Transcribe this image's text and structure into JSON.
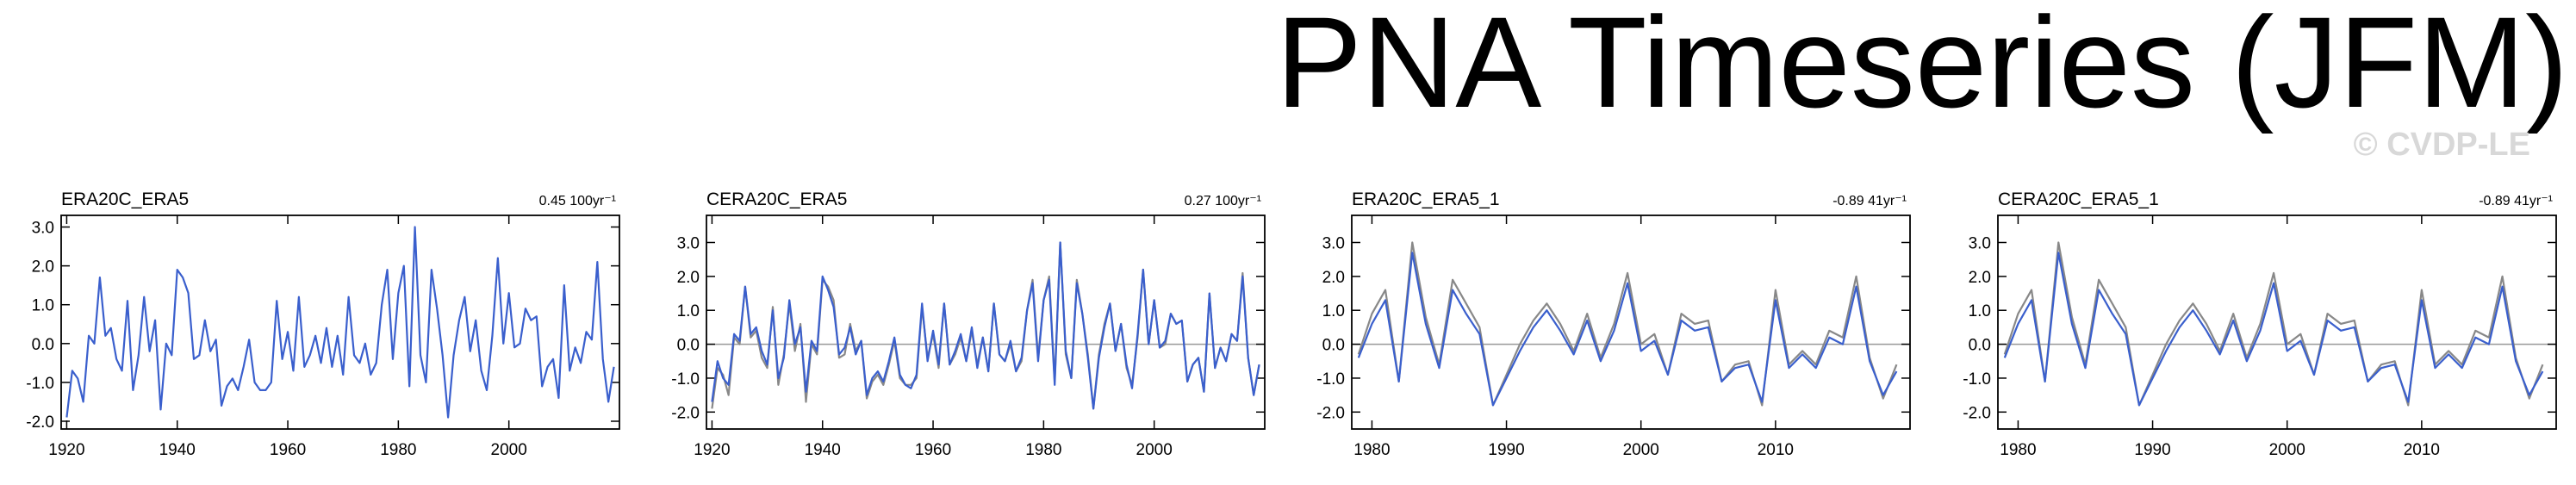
{
  "title": "PNA Timeseries (JFM)",
  "credit": "© CVDP-LE",
  "chart_data": [
    {
      "type": "line",
      "title": "ERA20C_ERA5",
      "trend": "0.45 100yr⁻¹",
      "x": [
        1920,
        1921,
        1922,
        1923,
        1924,
        1925,
        1926,
        1927,
        1928,
        1929,
        1930,
        1931,
        1932,
        1933,
        1934,
        1935,
        1936,
        1937,
        1938,
        1939,
        1940,
        1941,
        1942,
        1943,
        1944,
        1945,
        1946,
        1947,
        1948,
        1949,
        1950,
        1951,
        1952,
        1953,
        1954,
        1955,
        1956,
        1957,
        1958,
        1959,
        1960,
        1961,
        1962,
        1963,
        1964,
        1965,
        1966,
        1967,
        1968,
        1969,
        1970,
        1971,
        1972,
        1973,
        1974,
        1975,
        1976,
        1977,
        1978,
        1979,
        1980,
        1981,
        1982,
        1983,
        1984,
        1985,
        1986,
        1987,
        1988,
        1989,
        1990,
        1991,
        1992,
        1993,
        1994,
        1995,
        1996,
        1997,
        1998,
        1999,
        2000,
        2001,
        2002,
        2003,
        2004,
        2005,
        2006,
        2007,
        2008,
        2009,
        2010,
        2011,
        2012,
        2013,
        2014,
        2015,
        2016,
        2017,
        2018,
        2019
      ],
      "series": [
        {
          "color": "#3a5fcd",
          "values": [
            -1.9,
            -0.7,
            -0.9,
            -1.5,
            0.2,
            0.0,
            1.7,
            0.2,
            0.4,
            -0.4,
            -0.7,
            1.1,
            -1.2,
            -0.3,
            1.2,
            -0.2,
            0.6,
            -1.7,
            0.0,
            -0.3,
            1.9,
            1.7,
            1.3,
            -0.4,
            -0.3,
            0.6,
            -0.2,
            0.1,
            -1.6,
            -1.1,
            -0.9,
            -1.2,
            -0.6,
            0.1,
            -1.0,
            -1.2,
            -1.2,
            -1.0,
            1.1,
            -0.4,
            0.3,
            -0.7,
            1.2,
            -0.6,
            -0.3,
            0.2,
            -0.5,
            0.4,
            -0.6,
            0.2,
            -0.8,
            1.2,
            -0.3,
            -0.5,
            0.0,
            -0.8,
            -0.5,
            1.0,
            1.9,
            -0.4,
            1.3,
            2.0,
            -1.1,
            3.0,
            -0.3,
            -1.0,
            1.9,
            0.9,
            -0.3,
            -1.9,
            -0.3,
            0.6,
            1.2,
            -0.2,
            0.6,
            -0.7,
            -1.2,
            0.2,
            2.2,
            0.0,
            1.3,
            -0.1,
            0.0,
            0.9,
            0.6,
            0.7,
            -1.1,
            -0.6,
            -0.4,
            -1.4,
            1.5,
            -0.7,
            -0.1,
            -0.5,
            0.3,
            0.1,
            2.1,
            -0.4,
            -1.5,
            -0.6
          ]
        }
      ],
      "xlim": [
        1919,
        2020
      ],
      "ylim": [
        -2.2,
        3.3
      ],
      "xticks": [
        1920,
        1940,
        1960,
        1980,
        2000
      ],
      "yticks": [
        {
          "value": -2,
          "label": "-2.0"
        },
        {
          "value": -1,
          "label": "-1.0"
        },
        {
          "value": 0,
          "label": "0.0"
        },
        {
          "value": 1,
          "label": "1.0"
        },
        {
          "value": 2,
          "label": "2.0"
        },
        {
          "value": 3,
          "label": "3.0"
        }
      ],
      "zero_line": false
    },
    {
      "type": "line",
      "title": "CERA20C_ERA5",
      "trend": "0.27 100yr⁻¹",
      "x": [
        1920,
        1921,
        1922,
        1923,
        1924,
        1925,
        1926,
        1927,
        1928,
        1929,
        1930,
        1931,
        1932,
        1933,
        1934,
        1935,
        1936,
        1937,
        1938,
        1939,
        1940,
        1941,
        1942,
        1943,
        1944,
        1945,
        1946,
        1947,
        1948,
        1949,
        1950,
        1951,
        1952,
        1953,
        1954,
        1955,
        1956,
        1957,
        1958,
        1959,
        1960,
        1961,
        1962,
        1963,
        1964,
        1965,
        1966,
        1967,
        1968,
        1969,
        1970,
        1971,
        1972,
        1973,
        1974,
        1975,
        1976,
        1977,
        1978,
        1979,
        1980,
        1981,
        1982,
        1983,
        1984,
        1985,
        1986,
        1987,
        1988,
        1989,
        1990,
        1991,
        1992,
        1993,
        1994,
        1995,
        1996,
        1997,
        1998,
        1999,
        2000,
        2001,
        2002,
        2003,
        2004,
        2005,
        2006,
        2007,
        2008,
        2009,
        2010,
        2011,
        2012,
        2013,
        2014,
        2015,
        2016,
        2017,
        2018,
        2019
      ],
      "series": [
        {
          "color": "#888888",
          "values": [
            -1.9,
            -0.7,
            -0.9,
            -1.5,
            0.2,
            0.0,
            1.7,
            0.2,
            0.4,
            -0.4,
            -0.7,
            1.1,
            -1.2,
            -0.3,
            1.2,
            -0.2,
            0.6,
            -1.7,
            0.0,
            -0.3,
            1.9,
            1.7,
            1.3,
            -0.4,
            -0.3,
            0.6,
            -0.2,
            0.1,
            -1.6,
            -1.1,
            -0.9,
            -1.2,
            -0.6,
            0.1,
            -1.0,
            -1.2,
            -1.2,
            -1.0,
            1.1,
            -0.4,
            0.3,
            -0.7,
            1.2,
            -0.6,
            -0.3,
            0.2,
            -0.5,
            0.4,
            -0.6,
            0.2,
            -0.8,
            1.2,
            -0.3,
            -0.5,
            0.0,
            -0.8,
            -0.5,
            1.0,
            1.9,
            -0.4,
            1.3,
            2.0,
            -1.1,
            3.0,
            -0.3,
            -1.0,
            1.9,
            0.9,
            -0.3,
            -1.9,
            -0.3,
            0.6,
            1.2,
            -0.2,
            0.6,
            -0.7,
            -1.2,
            0.2,
            2.2,
            0.0,
            1.3,
            -0.1,
            0.0,
            0.9,
            0.6,
            0.7,
            -1.1,
            -0.6,
            -0.4,
            -1.4,
            1.5,
            -0.7,
            -0.1,
            -0.5,
            0.3,
            0.1,
            2.1,
            -0.4,
            -1.5,
            -0.6
          ]
        },
        {
          "color": "#3a5fcd",
          "values": [
            -1.7,
            -0.5,
            -1.0,
            -1.2,
            0.3,
            0.1,
            1.7,
            0.3,
            0.5,
            -0.2,
            -0.6,
            1.0,
            -1.0,
            -0.4,
            1.3,
            0.0,
            0.5,
            -1.4,
            0.1,
            -0.2,
            2.0,
            1.6,
            1.1,
            -0.3,
            -0.1,
            0.5,
            -0.3,
            0.1,
            -1.5,
            -1.0,
            -0.8,
            -1.1,
            -0.5,
            0.2,
            -0.9,
            -1.2,
            -1.3,
            -0.9,
            1.2,
            -0.5,
            0.4,
            -0.6,
            1.2,
            -0.6,
            -0.2,
            0.3,
            -0.5,
            0.5,
            -0.7,
            0.2,
            -0.8,
            1.2,
            -0.3,
            -0.5,
            0.1,
            -0.8,
            -0.4,
            1.0,
            1.8,
            -0.5,
            1.3,
            1.9,
            -1.2,
            3.0,
            -0.2,
            -1.0,
            1.8,
            0.9,
            -0.4,
            -1.9,
            -0.4,
            0.5,
            1.2,
            -0.2,
            0.6,
            -0.6,
            -1.3,
            0.3,
            2.2,
            0.0,
            1.3,
            -0.1,
            0.1,
            0.9,
            0.6,
            0.7,
            -1.1,
            -0.6,
            -0.4,
            -1.4,
            1.5,
            -0.7,
            -0.1,
            -0.5,
            0.3,
            0.1,
            2.0,
            -0.4,
            -1.5,
            -0.6
          ]
        }
      ],
      "xlim": [
        1919,
        2020
      ],
      "ylim": [
        -2.5,
        3.8
      ],
      "xticks": [
        1920,
        1940,
        1960,
        1980,
        2000
      ],
      "yticks": [
        {
          "value": -2,
          "label": "-2.0"
        },
        {
          "value": -1,
          "label": "-1.0"
        },
        {
          "value": 0,
          "label": "0.0"
        },
        {
          "value": 1,
          "label": "1.0"
        },
        {
          "value": 2,
          "label": "2.0"
        },
        {
          "value": 3,
          "label": "3.0"
        }
      ],
      "zero_line": true
    },
    {
      "type": "line",
      "title": "ERA20C_ERA5_1",
      "trend": "-0.89 41yr⁻¹",
      "x": [
        1979,
        1980,
        1981,
        1982,
        1983,
        1984,
        1985,
        1986,
        1987,
        1988,
        1989,
        1990,
        1991,
        1992,
        1993,
        1994,
        1995,
        1996,
        1997,
        1998,
        1999,
        2000,
        2001,
        2002,
        2003,
        2004,
        2005,
        2006,
        2007,
        2008,
        2009,
        2010,
        2011,
        2012,
        2013,
        2014,
        2015,
        2016,
        2017,
        2018,
        2019
      ],
      "series": [
        {
          "color": "#888888",
          "values": [
            -0.3,
            0.9,
            1.6,
            -1.1,
            3.0,
            0.8,
            -0.6,
            1.9,
            1.2,
            0.5,
            -1.8,
            -0.9,
            0.0,
            0.7,
            1.2,
            0.6,
            -0.2,
            0.9,
            -0.4,
            0.6,
            2.1,
            0.0,
            0.3,
            -0.9,
            0.9,
            0.6,
            0.7,
            -1.1,
            -0.6,
            -0.5,
            -1.8,
            1.6,
            -0.6,
            -0.2,
            -0.6,
            0.4,
            0.2,
            2.0,
            -0.4,
            -1.6,
            -0.6
          ]
        },
        {
          "color": "#3a5fcd",
          "values": [
            -0.4,
            0.6,
            1.3,
            -1.1,
            2.7,
            0.6,
            -0.7,
            1.6,
            0.9,
            0.3,
            -1.8,
            -1.0,
            -0.2,
            0.5,
            1.0,
            0.4,
            -0.3,
            0.7,
            -0.5,
            0.4,
            1.8,
            -0.2,
            0.1,
            -0.9,
            0.7,
            0.4,
            0.5,
            -1.1,
            -0.7,
            -0.6,
            -1.7,
            1.3,
            -0.7,
            -0.3,
            -0.7,
            0.2,
            0.0,
            1.7,
            -0.5,
            -1.5,
            -0.8
          ]
        }
      ],
      "xlim": [
        1978.5,
        2020
      ],
      "ylim": [
        -2.5,
        3.8
      ],
      "xticks": [
        1980,
        1990,
        2000,
        2010
      ],
      "yticks": [
        {
          "value": -2,
          "label": "-2.0"
        },
        {
          "value": -1,
          "label": "-1.0"
        },
        {
          "value": 0,
          "label": "0.0"
        },
        {
          "value": 1,
          "label": "1.0"
        },
        {
          "value": 2,
          "label": "2.0"
        },
        {
          "value": 3,
          "label": "3.0"
        }
      ],
      "zero_line": true
    },
    {
      "type": "line",
      "title": "CERA20C_ERA5_1",
      "trend": "-0.89 41yr⁻¹",
      "x": [
        1979,
        1980,
        1981,
        1982,
        1983,
        1984,
        1985,
        1986,
        1987,
        1988,
        1989,
        1990,
        1991,
        1992,
        1993,
        1994,
        1995,
        1996,
        1997,
        1998,
        1999,
        2000,
        2001,
        2002,
        2003,
        2004,
        2005,
        2006,
        2007,
        2008,
        2009,
        2010,
        2011,
        2012,
        2013,
        2014,
        2015,
        2016,
        2017,
        2018,
        2019
      ],
      "series": [
        {
          "color": "#888888",
          "values": [
            -0.3,
            0.9,
            1.6,
            -1.1,
            3.0,
            0.8,
            -0.6,
            1.9,
            1.2,
            0.5,
            -1.8,
            -0.9,
            0.0,
            0.7,
            1.2,
            0.6,
            -0.2,
            0.9,
            -0.4,
            0.6,
            2.1,
            0.0,
            0.3,
            -0.9,
            0.9,
            0.6,
            0.7,
            -1.1,
            -0.6,
            -0.5,
            -1.8,
            1.6,
            -0.6,
            -0.2,
            -0.6,
            0.4,
            0.2,
            2.0,
            -0.4,
            -1.6,
            -0.6
          ]
        },
        {
          "color": "#3a5fcd",
          "values": [
            -0.4,
            0.6,
            1.3,
            -1.1,
            2.7,
            0.6,
            -0.7,
            1.6,
            0.9,
            0.3,
            -1.8,
            -1.0,
            -0.2,
            0.5,
            1.0,
            0.4,
            -0.3,
            0.7,
            -0.5,
            0.4,
            1.8,
            -0.2,
            0.1,
            -0.9,
            0.7,
            0.4,
            0.5,
            -1.1,
            -0.7,
            -0.6,
            -1.7,
            1.3,
            -0.7,
            -0.3,
            -0.7,
            0.2,
            0.0,
            1.7,
            -0.5,
            -1.5,
            -0.8
          ]
        }
      ],
      "xlim": [
        1978.5,
        2020
      ],
      "ylim": [
        -2.5,
        3.8
      ],
      "xticks": [
        1980,
        1990,
        2000,
        2010
      ],
      "yticks": [
        {
          "value": -2,
          "label": "-2.0"
        },
        {
          "value": -1,
          "label": "-1.0"
        },
        {
          "value": 0,
          "label": "0.0"
        },
        {
          "value": 1,
          "label": "1.0"
        },
        {
          "value": 2,
          "label": "2.0"
        },
        {
          "value": 3,
          "label": "3.0"
        }
      ],
      "zero_line": true
    }
  ]
}
